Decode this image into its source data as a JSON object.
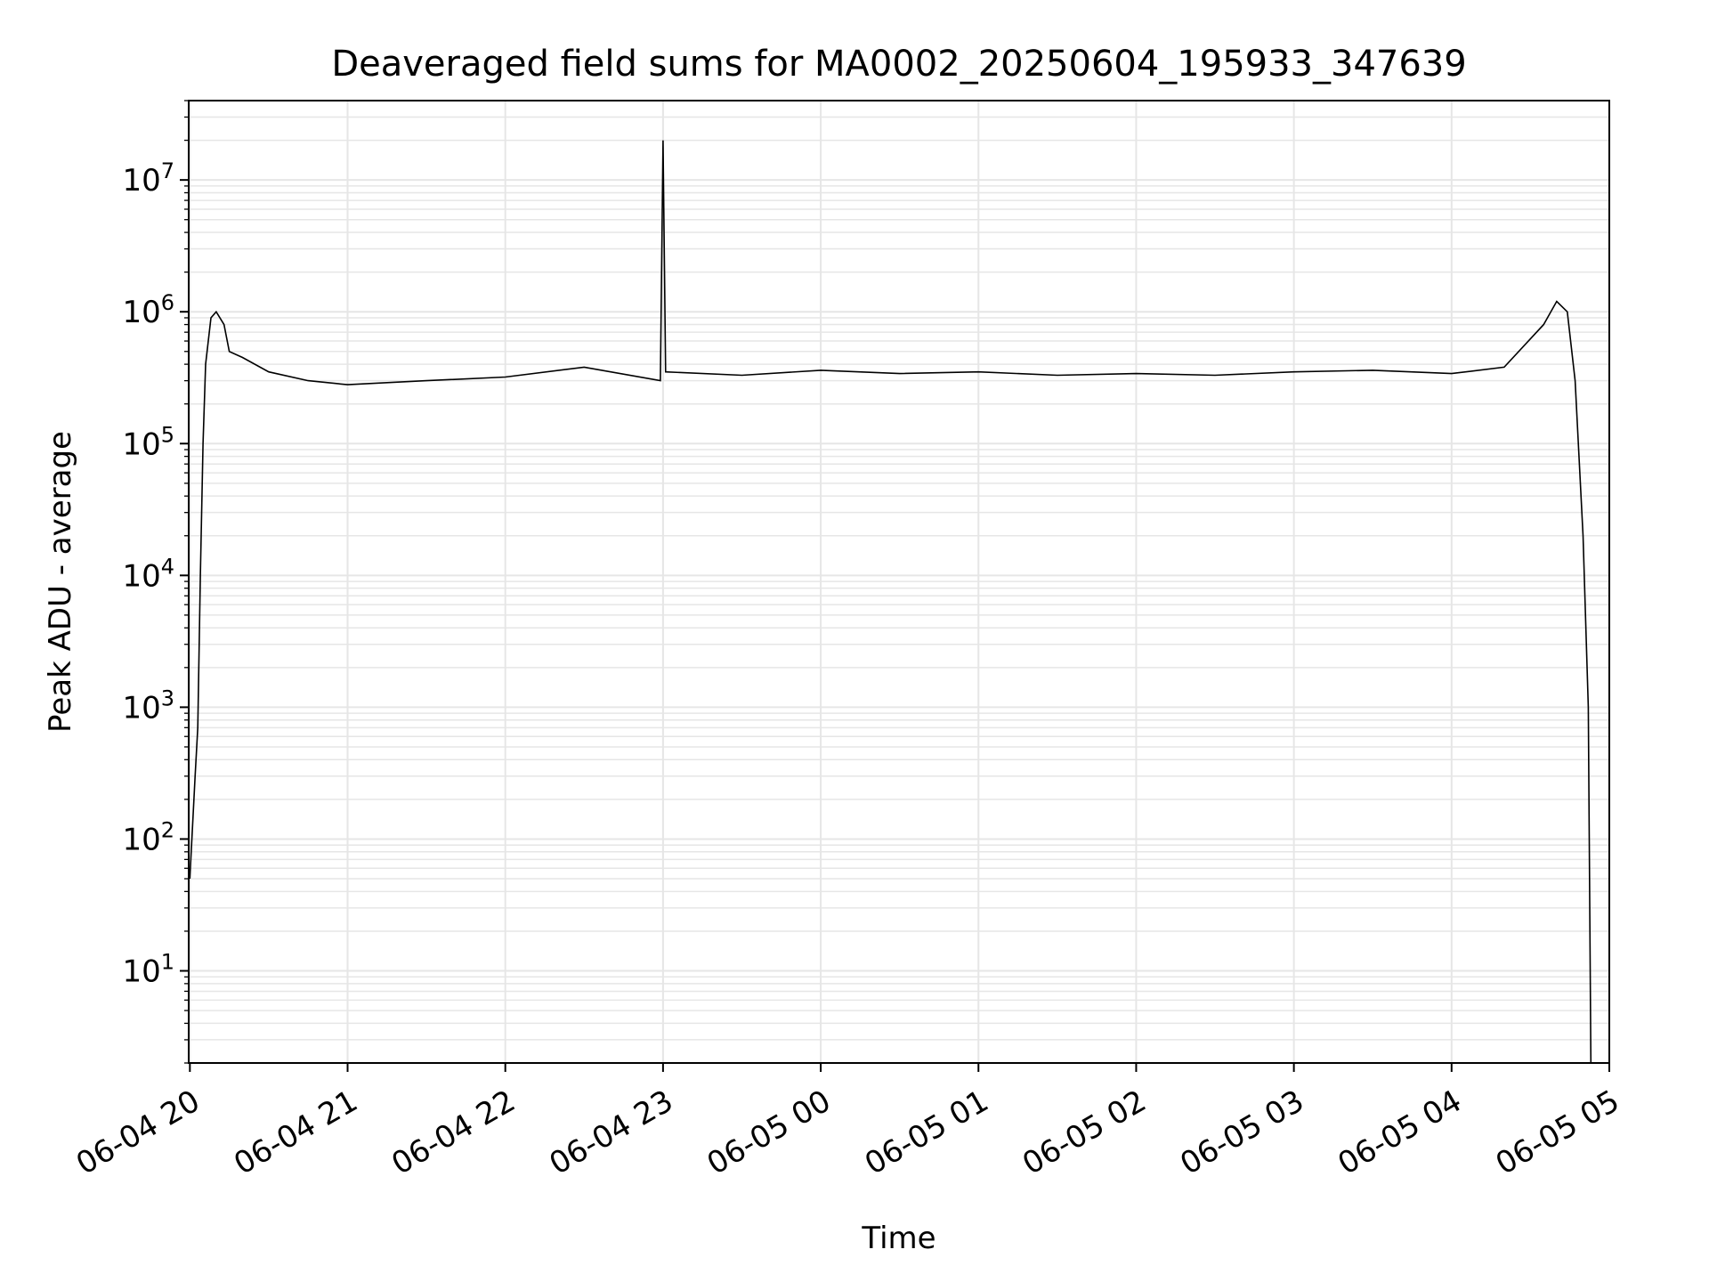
{
  "chart_data": {
    "type": "line",
    "title": "Deaveraged field sums for MA0002_20250604_195933_347639",
    "xlabel": "Time",
    "ylabel": "Peak ADU - average",
    "yscale": "log",
    "xlim": [
      "2025-06-04 19:59:33",
      "2025-06-05 05:00:00"
    ],
    "ylim": [
      2,
      40000000
    ],
    "x_ticks": [
      {
        "value": "2025-06-04 20:00",
        "label": "06-04 20"
      },
      {
        "value": "2025-06-04 21:00",
        "label": "06-04 21"
      },
      {
        "value": "2025-06-04 22:00",
        "label": "06-04 22"
      },
      {
        "value": "2025-06-04 23:00",
        "label": "06-04 23"
      },
      {
        "value": "2025-06-05 00:00",
        "label": "06-05 00"
      },
      {
        "value": "2025-06-05 01:00",
        "label": "06-05 01"
      },
      {
        "value": "2025-06-05 02:00",
        "label": "06-05 02"
      },
      {
        "value": "2025-06-05 03:00",
        "label": "06-05 03"
      },
      {
        "value": "2025-06-05 04:00",
        "label": "06-05 04"
      },
      {
        "value": "2025-06-05 05:00",
        "label": "06-05 05"
      }
    ],
    "y_ticks": [
      {
        "value": 10,
        "base": "10",
        "exp": "1"
      },
      {
        "value": 100,
        "base": "10",
        "exp": "2"
      },
      {
        "value": 1000,
        "base": "10",
        "exp": "3"
      },
      {
        "value": 10000,
        "base": "10",
        "exp": "4"
      },
      {
        "value": 100000,
        "base": "10",
        "exp": "5"
      },
      {
        "value": 1000000,
        "base": "10",
        "exp": "6"
      },
      {
        "value": 10000000,
        "base": "10",
        "exp": "7"
      }
    ],
    "grid": {
      "major": true,
      "minor_y": true,
      "color": "#e6e6e6"
    },
    "line_color": "#000000",
    "series": [
      {
        "x": [
          "2025-06-04 20:00",
          "2025-06-04 20:02",
          "2025-06-04 20:03",
          "2025-06-04 20:04",
          "2025-06-04 20:05",
          "2025-06-04 20:06",
          "2025-06-04 20:08",
          "2025-06-04 20:10",
          "2025-06-04 20:13",
          "2025-06-04 20:15",
          "2025-06-04 20:20",
          "2025-06-04 20:30",
          "2025-06-04 20:45",
          "2025-06-04 21:00",
          "2025-06-04 21:30",
          "2025-06-04 22:00",
          "2025-06-04 22:30",
          "2025-06-04 22:59",
          "2025-06-04 23:00",
          "2025-06-04 23:01",
          "2025-06-04 23:30",
          "2025-06-05 00:00",
          "2025-06-05 00:30",
          "2025-06-05 01:00",
          "2025-06-05 01:30",
          "2025-06-05 02:00",
          "2025-06-05 02:30",
          "2025-06-05 03:00",
          "2025-06-05 03:30",
          "2025-06-05 04:00",
          "2025-06-05 04:20",
          "2025-06-05 04:35",
          "2025-06-05 04:40",
          "2025-06-05 04:44",
          "2025-06-05 04:47",
          "2025-06-05 04:50",
          "2025-06-05 04:52",
          "2025-06-05 04:53"
        ],
        "y": [
          50,
          300,
          700,
          10000,
          100000,
          400000,
          900000,
          1000000,
          800000,
          500000,
          450000,
          350000,
          300000,
          280000,
          300000,
          320000,
          380000,
          300000,
          20000000,
          350000,
          330000,
          360000,
          340000,
          350000,
          330000,
          340000,
          330000,
          350000,
          360000,
          340000,
          380000,
          800000,
          1200000,
          1000000,
          300000,
          20000,
          1000,
          2
        ]
      }
    ]
  }
}
